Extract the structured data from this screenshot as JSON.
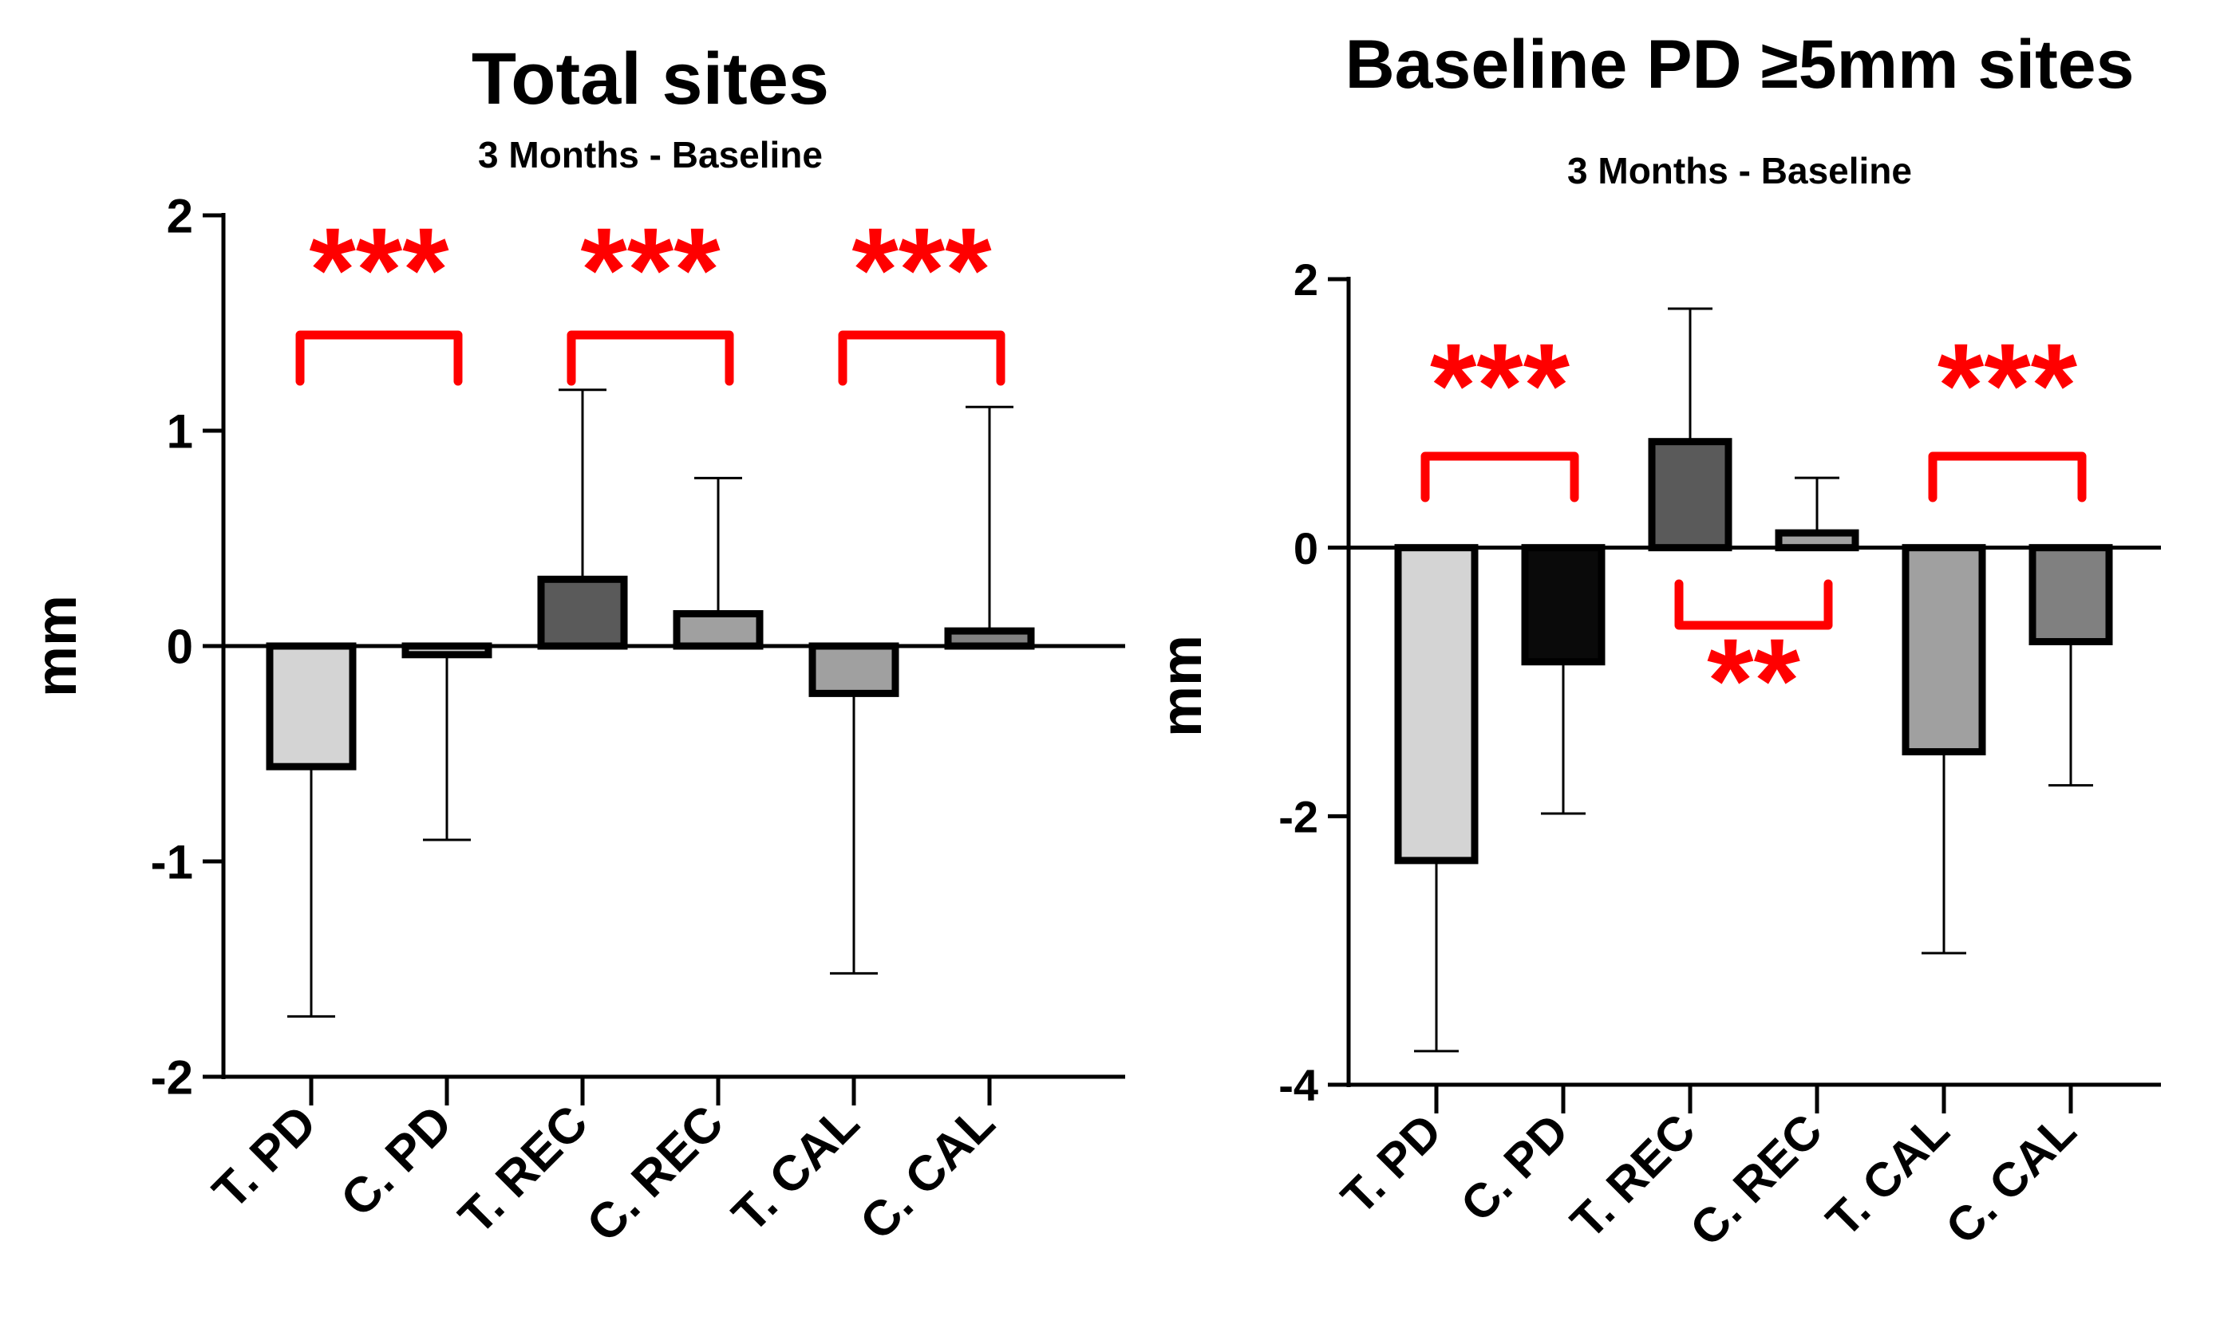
{
  "chart_data": [
    {
      "type": "bar",
      "title": "Total sites",
      "subtitle": "3 Months - Baseline",
      "ylabel": "mm",
      "xlabel": "",
      "ylim": [
        -2,
        2
      ],
      "yticks": [
        "2",
        "1",
        "0",
        "-1",
        "-2"
      ],
      "ytick_values": [
        2,
        1,
        0,
        -1,
        -2
      ],
      "categories": [
        "T. PD",
        "C. PD",
        "T. REC",
        "C. REC",
        "T. CAL",
        "C. CAL"
      ],
      "values": [
        -0.56,
        -0.04,
        0.31,
        0.15,
        -0.22,
        0.07
      ],
      "error_tips": [
        -1.72,
        -0.9,
        1.19,
        0.78,
        -1.52,
        1.11
      ],
      "bar_colors": [
        "#d4d4d4",
        "#d4d4d4",
        "#5a5a5a",
        "#a0a0a0",
        "#a0a0a0",
        "#808080"
      ],
      "significance": [
        {
          "from": 0,
          "to": 1,
          "label": "***",
          "position": "above"
        },
        {
          "from": 2,
          "to": 3,
          "label": "***",
          "position": "above"
        },
        {
          "from": 4,
          "to": 5,
          "label": "***",
          "position": "above"
        }
      ],
      "sig_color": "#ff0000"
    },
    {
      "type": "bar",
      "title": "Baseline PD ≥5mm sites",
      "subtitle": "3 Months - Baseline",
      "ylabel": "mm",
      "xlabel": "",
      "ylim": [
        -4,
        2
      ],
      "yticks": [
        "2",
        "0",
        "-2",
        "-4"
      ],
      "ytick_values": [
        2,
        0,
        -2,
        -4
      ],
      "categories": [
        "T. PD",
        "C. PD",
        "T. REC",
        "C. REC",
        "T. CAL",
        "C. CAL"
      ],
      "values": [
        -2.33,
        -0.85,
        0.79,
        0.11,
        -1.52,
        -0.7
      ],
      "error_tips": [
        -3.75,
        -1.98,
        1.78,
        0.52,
        -3.02,
        -1.77
      ],
      "bar_colors": [
        "#d4d4d4",
        "#0a0a0a",
        "#5a5a5a",
        "#a0a0a0",
        "#a0a0a0",
        "#808080"
      ],
      "significance": [
        {
          "from": 0,
          "to": 1,
          "label": "***",
          "position": "above"
        },
        {
          "from": 2,
          "to": 3,
          "label": "**",
          "position": "below"
        },
        {
          "from": 4,
          "to": 5,
          "label": "***",
          "position": "above"
        }
      ],
      "sig_color": "#ff0000"
    }
  ]
}
